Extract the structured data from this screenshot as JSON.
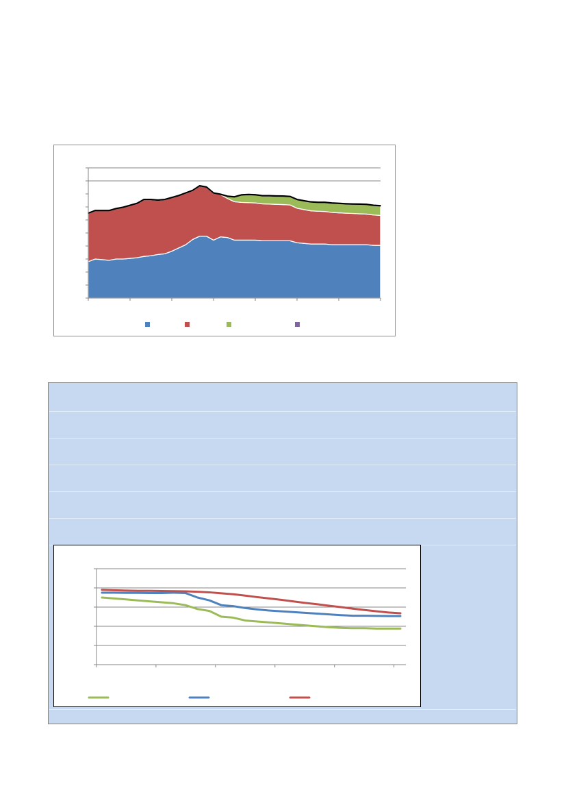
{
  "colors": {
    "blue": "#4f81bd",
    "red": "#c0504d",
    "green": "#9bbb59",
    "purple": "#8064a2",
    "panel": "#c6d9f1",
    "axis": "#868686"
  },
  "chart_data": [
    {
      "type": "area",
      "stacked": true,
      "ylim": [
        0,
        10
      ],
      "y_gridlines": [
        9,
        10
      ],
      "x": [
        0,
        1,
        2,
        3,
        4,
        5,
        6,
        7,
        8,
        9,
        10,
        11,
        12,
        13,
        14,
        15,
        16,
        17,
        18,
        19,
        20,
        21,
        22,
        23,
        24,
        25,
        26,
        27,
        28,
        29,
        30,
        31,
        32,
        33,
        34,
        35,
        36,
        37,
        38,
        39,
        40,
        41,
        42
      ],
      "x_tick_count": 7,
      "series": [
        {
          "color": "blue",
          "values": [
            2.8,
            3.0,
            2.95,
            2.9,
            3.0,
            3.0,
            3.05,
            3.1,
            3.2,
            3.25,
            3.35,
            3.4,
            3.6,
            3.85,
            4.1,
            4.5,
            4.75,
            4.75,
            4.45,
            4.7,
            4.65,
            4.45,
            4.45,
            4.45,
            4.45,
            4.4,
            4.4,
            4.4,
            4.4,
            4.4,
            4.25,
            4.2,
            4.15,
            4.15,
            4.15,
            4.1,
            4.1,
            4.1,
            4.1,
            4.1,
            4.1,
            4.05,
            4.05
          ]
        },
        {
          "color": "red",
          "values": [
            3.7,
            3.7,
            3.75,
            3.8,
            3.85,
            3.95,
            4.05,
            4.15,
            4.35,
            4.3,
            4.15,
            4.15,
            4.1,
            4.0,
            3.95,
            3.75,
            3.85,
            3.75,
            3.6,
            3.25,
            3.0,
            2.95,
            2.9,
            2.88,
            2.86,
            2.84,
            2.82,
            2.8,
            2.78,
            2.75,
            2.65,
            2.6,
            2.55,
            2.52,
            2.5,
            2.48,
            2.45,
            2.42,
            2.4,
            2.37,
            2.35,
            2.33,
            2.3
          ]
        },
        {
          "color": "green",
          "values": [
            0,
            0,
            0,
            0,
            0,
            0,
            0,
            0,
            0,
            0,
            0,
            0,
            0,
            0,
            0,
            0,
            0,
            0,
            0,
            0,
            0.15,
            0.35,
            0.55,
            0.6,
            0.6,
            0.6,
            0.62,
            0.62,
            0.63,
            0.63,
            0.65,
            0.65,
            0.66,
            0.66,
            0.68,
            0.7,
            0.7,
            0.7,
            0.7,
            0.72,
            0.72,
            0.72,
            0.72
          ]
        },
        {
          "color": "purple",
          "values": [
            0.05,
            0.05,
            0.05,
            0.05,
            0.05,
            0.05,
            0.05,
            0.05,
            0.05,
            0.05,
            0.05,
            0.05,
            0.05,
            0.05,
            0.05,
            0.05,
            0.05,
            0.05,
            0.05,
            0.05,
            0.05,
            0.05,
            0.05,
            0.05,
            0.05,
            0.05,
            0.05,
            0.05,
            0.05,
            0.05,
            0.05,
            0.05,
            0.05,
            0.05,
            0.05,
            0.05,
            0.05,
            0.05,
            0.05,
            0.05,
            0.05,
            0.05,
            0.05
          ]
        }
      ],
      "legend_position": "bottom"
    },
    {
      "type": "line",
      "ylim": [
        0,
        5
      ],
      "y_gridlines": [
        1,
        2,
        3,
        4,
        5
      ],
      "x": [
        0,
        1,
        2,
        3,
        4,
        5,
        6,
        7,
        8,
        9,
        10,
        11,
        12,
        13,
        14,
        15,
        16,
        17,
        18,
        19,
        20,
        21,
        22,
        23,
        24,
        25
      ],
      "x_tick_count": 6,
      "series": [
        {
          "color": "green",
          "values": [
            3.5,
            3.45,
            3.4,
            3.35,
            3.3,
            3.25,
            3.2,
            3.1,
            2.9,
            2.8,
            2.5,
            2.45,
            2.3,
            2.25,
            2.2,
            2.15,
            2.1,
            2.05,
            2.0,
            1.95,
            1.92,
            1.9,
            1.9,
            1.88,
            1.88,
            1.88
          ]
        },
        {
          "color": "blue",
          "values": [
            3.75,
            3.75,
            3.74,
            3.74,
            3.73,
            3.73,
            3.75,
            3.73,
            3.5,
            3.35,
            3.1,
            3.05,
            2.95,
            2.88,
            2.82,
            2.78,
            2.74,
            2.7,
            2.66,
            2.62,
            2.58,
            2.55,
            2.55,
            2.54,
            2.53,
            2.53
          ]
        },
        {
          "color": "red",
          "values": [
            3.9,
            3.88,
            3.86,
            3.85,
            3.85,
            3.84,
            3.83,
            3.82,
            3.8,
            3.77,
            3.72,
            3.67,
            3.6,
            3.52,
            3.45,
            3.38,
            3.3,
            3.22,
            3.15,
            3.07,
            3.0,
            2.92,
            2.85,
            2.78,
            2.72,
            2.68
          ]
        }
      ],
      "legend_position": "bottom"
    }
  ]
}
